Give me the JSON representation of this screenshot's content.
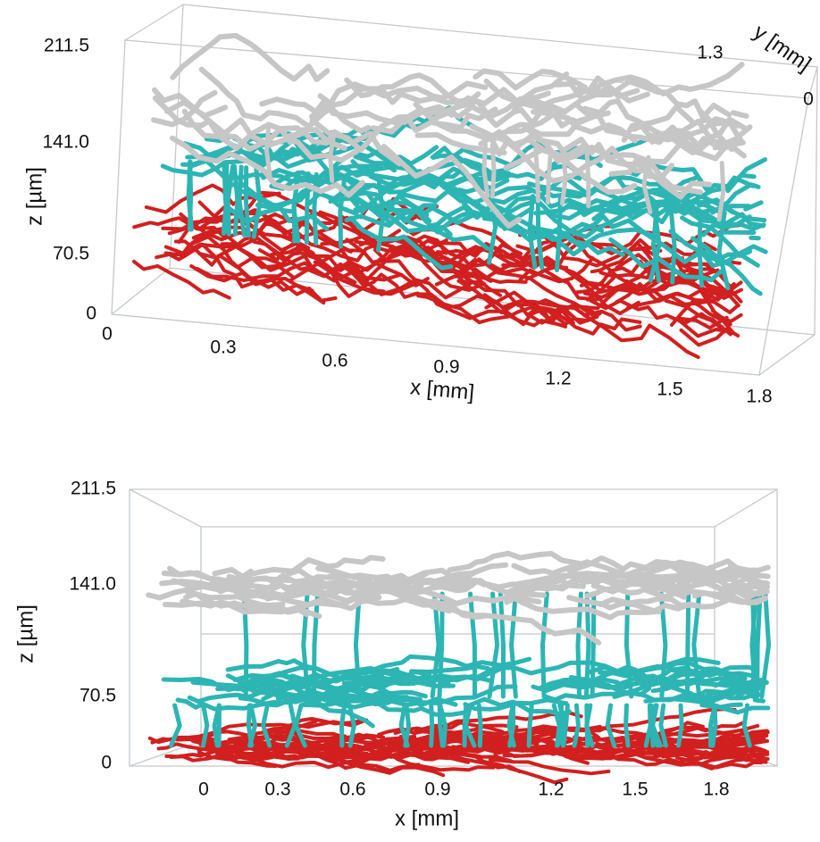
{
  "panels": [
    {
      "z_label": "z [µm]",
      "x_label": "x [mm]",
      "y_label": "y [mm]",
      "z_ticks": [
        "211.5",
        "141.0",
        "70.5",
        "0"
      ],
      "x_ticks": [
        "0",
        "0.3",
        "0.6",
        "0.9",
        "1.2",
        "1.5",
        "1.8"
      ],
      "y_ticks": [
        "1.3",
        "0"
      ]
    },
    {
      "z_label": "z [µm]",
      "x_label": "x [mm]",
      "z_ticks": [
        "211.5",
        "141.0",
        "70.5",
        "0"
      ],
      "x_ticks": [
        "0",
        "0.3",
        "0.6",
        "0.9",
        "1.2",
        "1.5",
        "1.8"
      ]
    }
  ]
}
